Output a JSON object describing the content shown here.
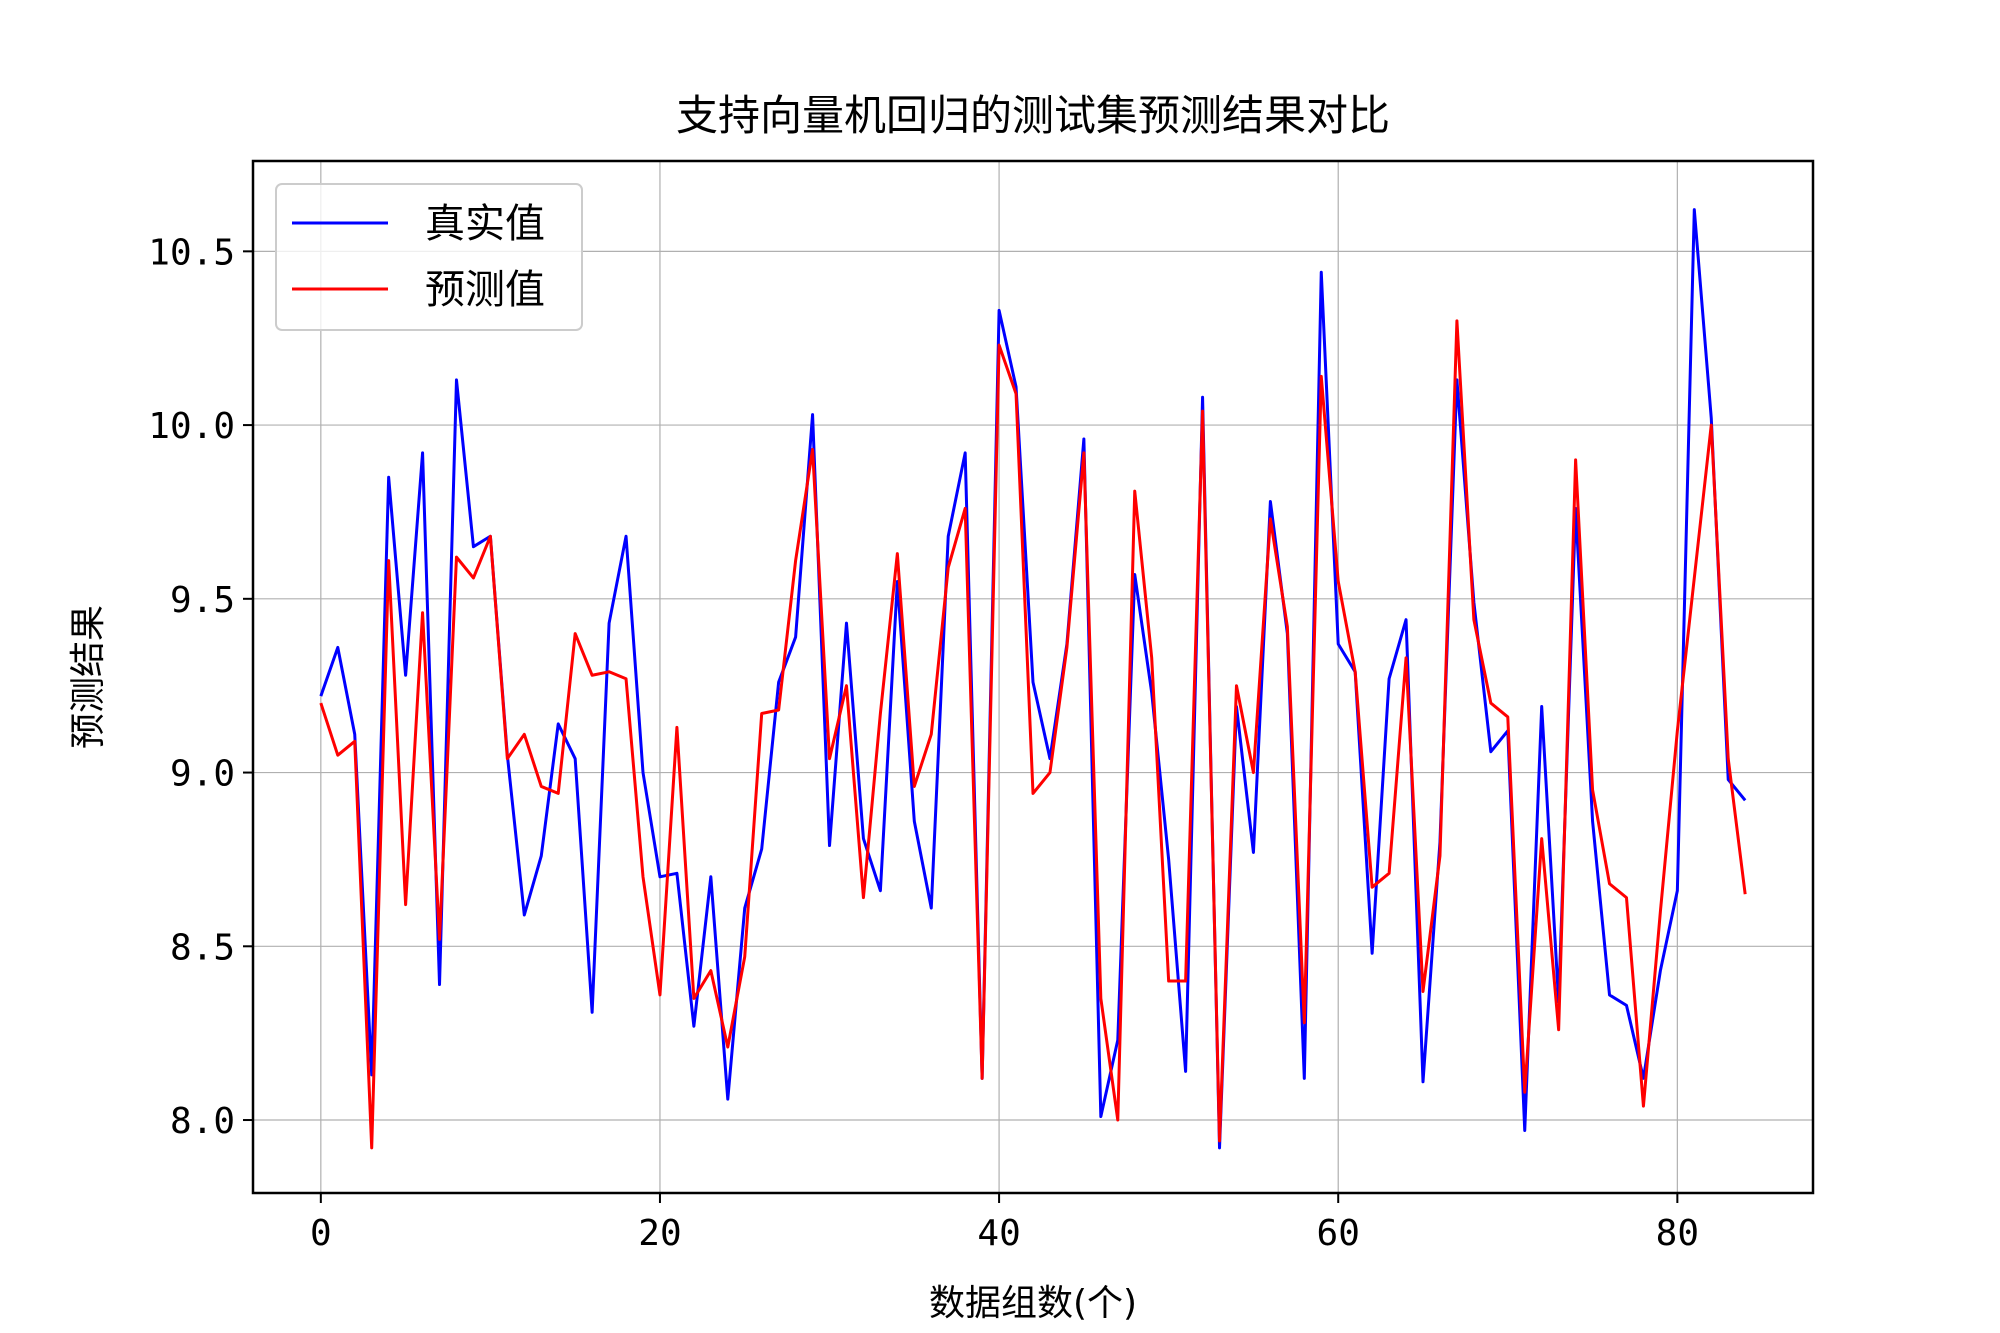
{
  "chart_data": {
    "type": "line",
    "title": "支持向量机回归的测试集预测结果对比",
    "xlabel": "数据组数(个)",
    "ylabel": "预测结果",
    "xlim": [
      -4,
      88
    ],
    "ylim": [
      7.79,
      10.76
    ],
    "xticks": [
      0,
      20,
      40,
      60,
      80
    ],
    "xtick_labels": [
      "0",
      "20",
      "40",
      "60",
      "80"
    ],
    "yticks": [
      8.0,
      8.5,
      9.0,
      9.5,
      10.0,
      10.5
    ],
    "ytick_labels": [
      "8.0",
      "8.5",
      "9.0",
      "9.5",
      "10.0",
      "10.5"
    ],
    "grid": true,
    "legend_position": "upper-left",
    "series": [
      {
        "name": "真实值",
        "color": "#0000ff",
        "values": [
          9.22,
          9.36,
          9.11,
          8.13,
          9.85,
          9.28,
          9.92,
          8.39,
          10.13,
          9.65,
          9.68,
          9.05,
          8.59,
          8.76,
          9.14,
          9.04,
          8.31,
          9.43,
          9.68,
          9.0,
          8.7,
          8.71,
          8.27,
          8.7,
          8.06,
          8.61,
          8.78,
          9.26,
          9.39,
          10.03,
          8.79,
          9.43,
          8.81,
          8.66,
          9.55,
          8.86,
          8.61,
          9.68,
          9.92,
          8.12,
          10.33,
          10.11,
          9.26,
          9.04,
          9.37,
          9.96,
          8.01,
          8.23,
          9.57,
          9.23,
          8.75,
          8.14,
          10.08,
          7.92,
          9.19,
          8.77,
          9.78,
          9.4,
          8.12,
          10.44,
          9.37,
          9.29,
          8.48,
          9.27,
          9.44,
          8.11,
          8.8,
          10.13,
          9.49,
          9.06,
          9.12,
          7.97,
          9.19,
          8.34,
          9.76,
          8.86,
          8.36,
          8.33,
          8.12,
          8.43,
          8.66,
          10.62,
          10.02,
          8.98,
          8.92
        ]
      },
      {
        "name": "预测值",
        "color": "#ff0000",
        "values": [
          9.2,
          9.05,
          9.09,
          7.92,
          9.61,
          8.62,
          9.46,
          8.52,
          9.62,
          9.56,
          9.68,
          9.04,
          9.11,
          8.96,
          8.94,
          9.4,
          9.28,
          9.29,
          9.27,
          8.7,
          8.36,
          9.13,
          8.35,
          8.43,
          8.21,
          8.47,
          9.17,
          9.18,
          9.61,
          9.93,
          9.04,
          9.25,
          8.64,
          9.17,
          9.63,
          8.96,
          9.11,
          9.59,
          9.76,
          8.12,
          10.23,
          10.09,
          8.94,
          9.0,
          9.36,
          9.92,
          8.35,
          8.0,
          9.81,
          9.33,
          8.4,
          8.4,
          10.04,
          7.94,
          9.25,
          9.0,
          9.73,
          9.42,
          8.28,
          10.14,
          9.55,
          9.29,
          8.67,
          8.71,
          9.33,
          8.37,
          8.76,
          10.3,
          9.44,
          9.2,
          9.16,
          8.08,
          8.81,
          8.26,
          9.9,
          8.95,
          8.68,
          8.64,
          8.04,
          8.6,
          9.12,
          9.56,
          10.0,
          9.04,
          8.65
        ]
      }
    ]
  }
}
